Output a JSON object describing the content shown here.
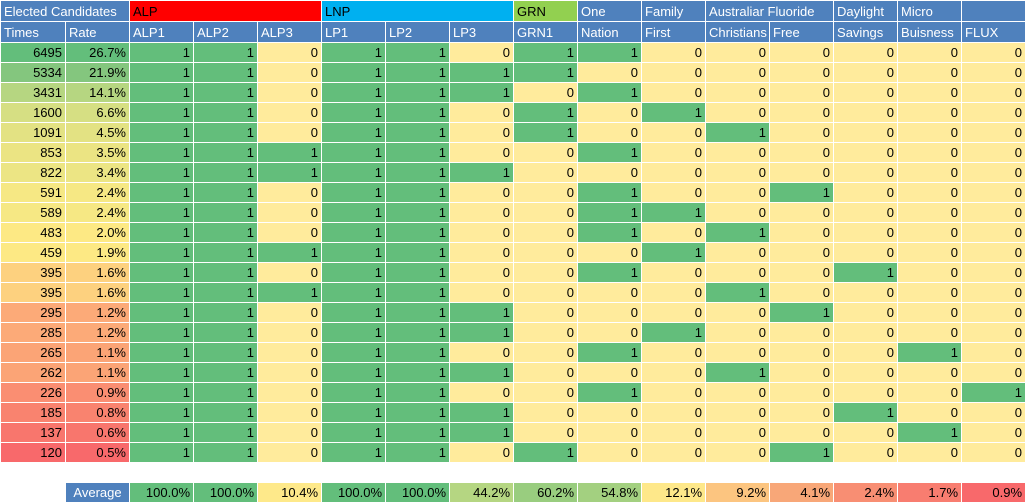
{
  "header_groups": [
    {
      "label": "Elected Candidates",
      "span": 2,
      "bg": "#4f81bd",
      "fg": "#ffffff"
    },
    {
      "label": "ALP",
      "span": 3,
      "bg": "#ff0000",
      "fg": "#000000"
    },
    {
      "label": "LNP",
      "span": 3,
      "bg": "#00b0f0",
      "fg": "#000000"
    },
    {
      "label": "GRN",
      "span": 1,
      "bg": "#92d050",
      "fg": "#000000"
    },
    {
      "label": "One",
      "span": 1,
      "bg": "#4f81bd",
      "fg": "#ffffff"
    },
    {
      "label": "Family",
      "span": 1,
      "bg": "#4f81bd",
      "fg": "#ffffff"
    },
    {
      "label": "Australiar Fluoride",
      "span": 2,
      "bg": "#4f81bd",
      "fg": "#ffffff"
    },
    {
      "label": "Daylight",
      "span": 1,
      "bg": "#4f81bd",
      "fg": "#ffffff"
    },
    {
      "label": "Micro",
      "span": 1,
      "bg": "#4f81bd",
      "fg": "#ffffff"
    },
    {
      "label": "",
      "span": 1,
      "bg": "#4f81bd",
      "fg": "#ffffff"
    }
  ],
  "columns": [
    "Times",
    "Rate",
    "ALP1",
    "ALP2",
    "ALP3",
    "LP1",
    "LP2",
    "LP3",
    "GRN1",
    "Nation",
    "First",
    "Christians",
    "Free",
    "Savings",
    "Buisness",
    "FLUX"
  ],
  "rows": [
    {
      "times": "6495",
      "rate": "26.7%",
      "cells": [
        "1",
        "1",
        "0",
        "1",
        "1",
        "0",
        "1",
        "1",
        "0",
        "0",
        "0",
        "0",
        "0",
        "0"
      ]
    },
    {
      "times": "5334",
      "rate": "21.9%",
      "cells": [
        "1",
        "1",
        "0",
        "1",
        "1",
        "1",
        "1",
        "0",
        "0",
        "0",
        "0",
        "0",
        "0",
        "0"
      ]
    },
    {
      "times": "3431",
      "rate": "14.1%",
      "cells": [
        "1",
        "1",
        "0",
        "1",
        "1",
        "1",
        "0",
        "1",
        "0",
        "0",
        "0",
        "0",
        "0",
        "0"
      ]
    },
    {
      "times": "1600",
      "rate": "6.6%",
      "cells": [
        "1",
        "1",
        "0",
        "1",
        "1",
        "0",
        "1",
        "0",
        "1",
        "0",
        "0",
        "0",
        "0",
        "0"
      ]
    },
    {
      "times": "1091",
      "rate": "4.5%",
      "cells": [
        "1",
        "1",
        "0",
        "1",
        "1",
        "0",
        "1",
        "0",
        "0",
        "1",
        "0",
        "0",
        "0",
        "0"
      ]
    },
    {
      "times": "853",
      "rate": "3.5%",
      "cells": [
        "1",
        "1",
        "1",
        "1",
        "1",
        "0",
        "0",
        "1",
        "0",
        "0",
        "0",
        "0",
        "0",
        "0"
      ]
    },
    {
      "times": "822",
      "rate": "3.4%",
      "cells": [
        "1",
        "1",
        "1",
        "1",
        "1",
        "1",
        "0",
        "0",
        "0",
        "0",
        "0",
        "0",
        "0",
        "0"
      ]
    },
    {
      "times": "591",
      "rate": "2.4%",
      "cells": [
        "1",
        "1",
        "0",
        "1",
        "1",
        "0",
        "0",
        "1",
        "0",
        "0",
        "1",
        "0",
        "0",
        "0"
      ]
    },
    {
      "times": "589",
      "rate": "2.4%",
      "cells": [
        "1",
        "1",
        "0",
        "1",
        "1",
        "0",
        "0",
        "1",
        "1",
        "0",
        "0",
        "0",
        "0",
        "0"
      ]
    },
    {
      "times": "483",
      "rate": "2.0%",
      "cells": [
        "1",
        "1",
        "0",
        "1",
        "1",
        "0",
        "0",
        "1",
        "0",
        "1",
        "0",
        "0",
        "0",
        "0"
      ]
    },
    {
      "times": "459",
      "rate": "1.9%",
      "cells": [
        "1",
        "1",
        "1",
        "1",
        "1",
        "0",
        "0",
        "0",
        "1",
        "0",
        "0",
        "0",
        "0",
        "0"
      ]
    },
    {
      "times": "395",
      "rate": "1.6%",
      "cells": [
        "1",
        "1",
        "0",
        "1",
        "1",
        "0",
        "0",
        "1",
        "0",
        "0",
        "0",
        "1",
        "0",
        "0"
      ]
    },
    {
      "times": "395",
      "rate": "1.6%",
      "cells": [
        "1",
        "1",
        "1",
        "1",
        "1",
        "0",
        "0",
        "0",
        "0",
        "1",
        "0",
        "0",
        "0",
        "0"
      ]
    },
    {
      "times": "295",
      "rate": "1.2%",
      "cells": [
        "1",
        "1",
        "0",
        "1",
        "1",
        "1",
        "0",
        "0",
        "0",
        "0",
        "1",
        "0",
        "0",
        "0"
      ]
    },
    {
      "times": "285",
      "rate": "1.2%",
      "cells": [
        "1",
        "1",
        "0",
        "1",
        "1",
        "1",
        "0",
        "0",
        "1",
        "0",
        "0",
        "0",
        "0",
        "0"
      ]
    },
    {
      "times": "265",
      "rate": "1.1%",
      "cells": [
        "1",
        "1",
        "0",
        "1",
        "1",
        "0",
        "0",
        "1",
        "0",
        "0",
        "0",
        "0",
        "1",
        "0"
      ]
    },
    {
      "times": "262",
      "rate": "1.1%",
      "cells": [
        "1",
        "1",
        "0",
        "1",
        "1",
        "1",
        "0",
        "0",
        "0",
        "1",
        "0",
        "0",
        "0",
        "0"
      ]
    },
    {
      "times": "226",
      "rate": "0.9%",
      "cells": [
        "1",
        "1",
        "0",
        "1",
        "1",
        "0",
        "0",
        "1",
        "0",
        "0",
        "0",
        "0",
        "0",
        "1"
      ]
    },
    {
      "times": "185",
      "rate": "0.8%",
      "cells": [
        "1",
        "1",
        "0",
        "1",
        "1",
        "1",
        "0",
        "0",
        "0",
        "0",
        "0",
        "1",
        "0",
        "0"
      ]
    },
    {
      "times": "137",
      "rate": "0.6%",
      "cells": [
        "1",
        "1",
        "0",
        "1",
        "1",
        "1",
        "0",
        "0",
        "0",
        "0",
        "0",
        "0",
        "1",
        "0"
      ]
    },
    {
      "times": "120",
      "rate": "0.5%",
      "cells": [
        "1",
        "1",
        "0",
        "1",
        "1",
        "0",
        "1",
        "0",
        "0",
        "0",
        "1",
        "0",
        "0",
        "0"
      ]
    }
  ],
  "average": {
    "label": "Average",
    "values": [
      "100.0%",
      "100.0%",
      "10.4%",
      "100.0%",
      "100.0%",
      "44.2%",
      "60.2%",
      "54.8%",
      "12.1%",
      "9.2%",
      "4.1%",
      "2.4%",
      "1.7%",
      "0.9%"
    ],
    "colors": [
      "#63be7b",
      "#63be7b",
      "#fee98a",
      "#63be7b",
      "#63be7b",
      "#b5d682",
      "#99cd7f",
      "#a3d080",
      "#fee88a",
      "#fcc580",
      "#f8a778",
      "#f88e73",
      "#f87d70",
      "#f8696b"
    ]
  },
  "colors": {
    "one": "#63be7b",
    "zero": "#ffeb9c",
    "header": "#4f81bd",
    "times_gradient": [
      "#63be7b",
      "#84c67e",
      "#b6d681",
      "#d6df83",
      "#e3e283",
      "#ebe483",
      "#ece584",
      "#f6e884",
      "#f6e884",
      "#fde984",
      "#fde984",
      "#fdd17f",
      "#fdd17f",
      "#fcaa78",
      "#fcaa78",
      "#fba476",
      "#fba476",
      "#fa8e72",
      "#f9836f",
      "#f8766d",
      "#f8696b"
    ]
  }
}
